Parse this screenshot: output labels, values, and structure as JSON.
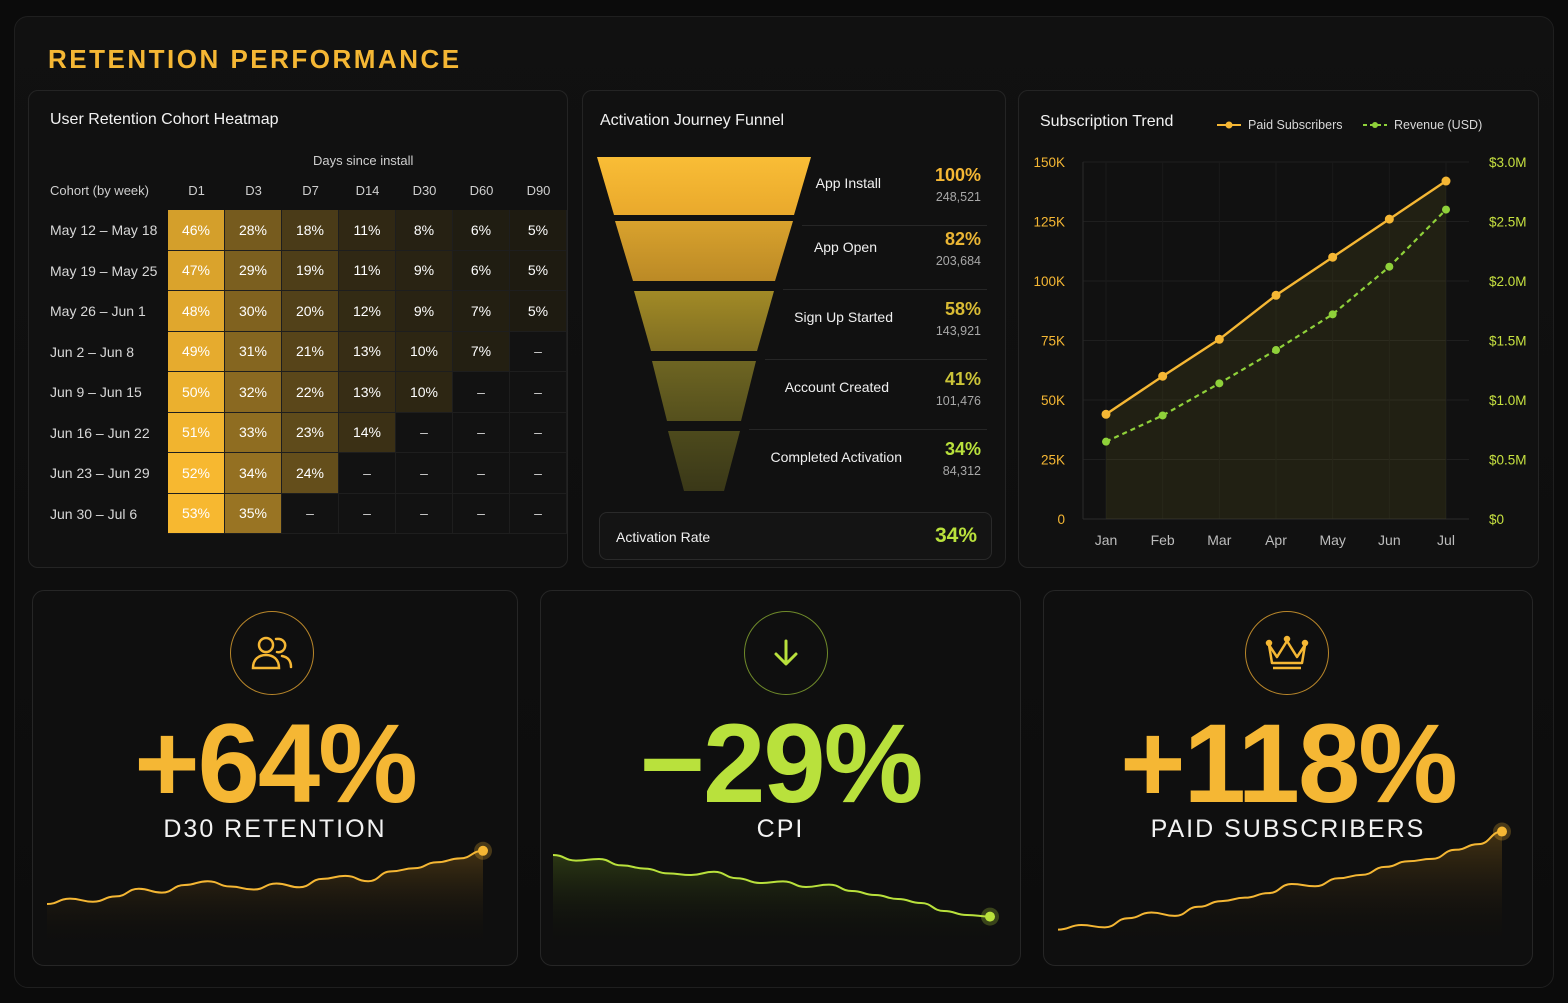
{
  "page": {
    "title": "RETENTION PERFORMANCE"
  },
  "heatmap": {
    "title": "User Retention Cohort Heatmap",
    "supertitle": "Days since install",
    "row_header": "Cohort (by week)",
    "columns": [
      "D1",
      "D3",
      "D7",
      "D14",
      "D30",
      "D60",
      "D90"
    ],
    "cohorts": [
      "May 12 – May 18",
      "May 19 – May 25",
      "May 26 – Jun 1",
      "Jun 2 – Jun 8",
      "Jun 9 – Jun 15",
      "Jun 16 – Jun 22",
      "Jun 23 – Jun 29",
      "Jun 30 – Jul 6"
    ],
    "cells": [
      [
        "46%",
        "28%",
        "18%",
        "11%",
        "8%",
        "6%",
        "5%"
      ],
      [
        "47%",
        "29%",
        "19%",
        "11%",
        "9%",
        "6%",
        "5%"
      ],
      [
        "48%",
        "30%",
        "20%",
        "12%",
        "9%",
        "7%",
        "5%"
      ],
      [
        "49%",
        "31%",
        "21%",
        "13%",
        "10%",
        "7%",
        "–"
      ],
      [
        "50%",
        "32%",
        "22%",
        "13%",
        "10%",
        "–",
        "–"
      ],
      [
        "51%",
        "33%",
        "23%",
        "14%",
        "–",
        "–",
        "–"
      ],
      [
        "52%",
        "34%",
        "24%",
        "–",
        "–",
        "–",
        "–"
      ],
      [
        "53%",
        "35%",
        "–",
        "–",
        "–",
        "–",
        "–"
      ]
    ]
  },
  "funnel": {
    "title": "Activation Journey Funnel",
    "stages": [
      {
        "label": "App Install",
        "pct": "100%",
        "count": "248,521"
      },
      {
        "label": "App Open",
        "pct": "82%",
        "count": "203,684"
      },
      {
        "label": "Sign Up Started",
        "pct": "58%",
        "count": "143,921"
      },
      {
        "label": "Account Created",
        "pct": "41%",
        "count": "101,476"
      },
      {
        "label": "Completed Activation",
        "pct": "34%",
        "count": "84,312"
      }
    ],
    "rate_label": "Activation Rate",
    "rate_value": "34%"
  },
  "chart_data": [
    {
      "type": "line",
      "title": "Subscription Trend",
      "x": [
        "Jan",
        "Feb",
        "Mar",
        "Apr",
        "May",
        "Jun",
        "Jul"
      ],
      "series": [
        {
          "name": "Paid Subscribers",
          "axis": "left",
          "color": "#f5b734",
          "values": [
            44000,
            60000,
            75500,
            94000,
            110000,
            126000,
            142000
          ]
        },
        {
          "name": "Revenue (USD)",
          "axis": "right",
          "color": "#8fd13a",
          "values": [
            0.65,
            0.87,
            1.14,
            1.42,
            1.72,
            2.12,
            2.6
          ]
        }
      ],
      "y_left": {
        "ticks": [
          "0",
          "25K",
          "50K",
          "75K",
          "100K",
          "125K",
          "150K"
        ],
        "ylim": [
          0,
          150000
        ]
      },
      "y_right": {
        "ticks": [
          "$0",
          "$0.5M",
          "$1.0M",
          "$1.5M",
          "$2.0M",
          "$2.5M",
          "$3.0M"
        ],
        "ylim": [
          0,
          3.0
        ]
      },
      "legend": "top",
      "grid": true
    },
    {
      "type": "area",
      "name": "D30 Retention sparkline",
      "values": [
        0.25,
        0.32,
        0.28,
        0.35,
        0.45,
        0.4,
        0.5,
        0.55,
        0.48,
        0.44,
        0.52,
        0.47,
        0.58,
        0.62,
        0.55,
        0.68,
        0.72,
        0.8,
        0.85,
        0.95
      ]
    },
    {
      "type": "area",
      "name": "CPI sparkline",
      "values": [
        0.95,
        0.88,
        0.9,
        0.82,
        0.78,
        0.72,
        0.7,
        0.74,
        0.66,
        0.6,
        0.62,
        0.55,
        0.58,
        0.5,
        0.45,
        0.4,
        0.35,
        0.25,
        0.2,
        0.18
      ]
    },
    {
      "type": "area",
      "name": "Paid Subscribers sparkline",
      "values": [
        0.1,
        0.14,
        0.12,
        0.2,
        0.25,
        0.22,
        0.3,
        0.35,
        0.38,
        0.42,
        0.5,
        0.48,
        0.55,
        0.58,
        0.65,
        0.7,
        0.72,
        0.8,
        0.85,
        0.96
      ]
    }
  ],
  "kpis": [
    {
      "value": "+64%",
      "label": "D30 RETENTION",
      "color": "#f5b734",
      "icon": "users-icon"
    },
    {
      "value": "−29%",
      "label": "CPI",
      "color": "#b9e13c",
      "icon": "arrow-down-icon"
    },
    {
      "value": "+118%",
      "label": "PAID SUBSCRIBERS",
      "color": "#f5b734",
      "icon": "crown-icon"
    }
  ],
  "colors": {
    "accent": "#f5b734",
    "green": "#b9e13c",
    "revenue": "#8fd13a"
  }
}
